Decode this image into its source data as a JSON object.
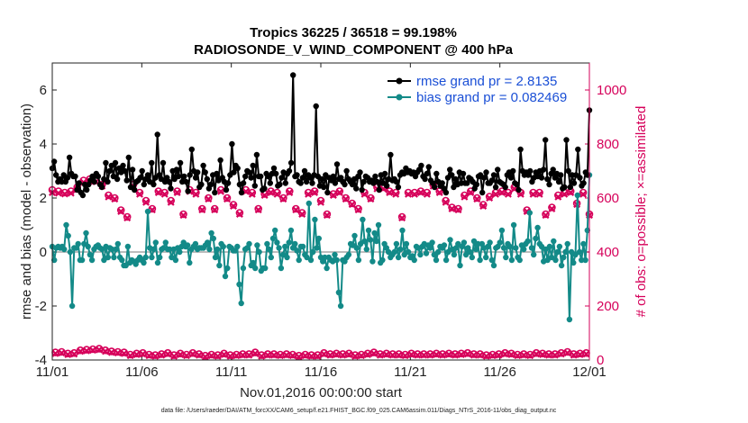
{
  "chart_data": {
    "type": "line",
    "title_line1": "Tropics 36225 / 36518 = 99.198%",
    "title_line2": "RADIOSONDE_V_WIND_COMPONENT @ 400 hPa",
    "ylabel_left": "rmse and bias (model - observation)",
    "ylabel_right": "# of obs: o=possible; ×=assimilated",
    "xlabel": "Nov.01,2016 00:00:00 start",
    "footnote": "data file: /Users/raeder/DAI/ATM_forcXX/CAM6_setup/f.e21.FHIST_BGC.f09_025.CAM6assim.011/Diags_NTrS_2016-11/obs_diag_output.nc",
    "ylim_left": [
      -4,
      7
    ],
    "ylim_right": [
      0,
      1100
    ],
    "xlim": [
      0,
      30
    ],
    "yticks_left": [
      "-4",
      "-2",
      "0",
      "2",
      "4",
      "6"
    ],
    "yticks_right": [
      "0",
      "200",
      "400",
      "600",
      "800",
      "1000"
    ],
    "xticks": [
      "11/01",
      "11/06",
      "11/11",
      "11/16",
      "11/21",
      "11/26",
      "12/01"
    ],
    "legend": [
      {
        "name": "rmse grand pr = 2.8135",
        "color": "#000000"
      },
      {
        "name": "bias grand pr = 0.082469",
        "color": "#138a88"
      }
    ],
    "colors": {
      "rmse": "#000000",
      "bias": "#138a88",
      "obs": "#d6005a",
      "zero_line": "#bdbdbd"
    },
    "series": [
      {
        "name": "rmse",
        "axis": "left",
        "values": [
          3.1,
          3.35,
          2.85,
          2.6,
          2.7,
          2.6,
          2.85,
          2.6,
          2.75,
          3.5,
          2.9,
          2.8,
          2.8,
          2.3,
          2.55,
          2.2,
          2.1,
          2.5,
          2.3,
          2.5,
          2.65,
          2.8,
          2.6,
          2.9,
          2.8,
          2.5,
          2.4,
          2.7,
          3.3,
          2.6,
          3.0,
          3.2,
          2.8,
          3.3,
          2.7,
          3.1,
          2.95,
          3.2,
          3.0,
          2.65,
          3.5,
          2.4,
          3.05,
          2.3,
          2.6,
          2.65,
          2.75,
          3.0,
          2.5,
          2.7,
          2.85,
          2.6,
          3.3,
          2.5,
          2.75,
          4.35,
          2.85,
          2.7,
          3.3,
          2.6,
          2.75,
          2.6,
          2.35,
          3.0,
          2.7,
          3.05,
          2.8,
          3.3,
          2.6,
          2.8,
          2.6,
          2.25,
          2.85,
          3.8,
          3.0,
          2.75,
          2.95,
          2.4,
          2.5,
          3.2,
          2.95,
          2.7,
          2.35,
          2.5,
          2.85,
          2.2,
          2.9,
          2.65,
          3.4,
          2.75,
          2.6,
          2.3,
          2.55,
          2.85,
          4.0,
          2.95,
          3.2,
          3.1,
          2.5,
          2.2,
          2.55,
          2.8,
          3.0,
          2.95,
          2.75,
          3.2,
          2.45,
          3.6,
          2.8,
          2.8,
          2.3,
          2.35,
          2.9,
          2.8,
          2.55,
          2.9,
          3.1,
          2.9,
          2.45,
          2.5,
          2.75,
          2.95,
          2.55,
          2.9,
          3.0,
          3.3,
          6.55,
          2.8,
          2.85,
          2.6,
          2.55,
          2.75,
          3.0,
          2.6,
          2.85,
          2.75,
          2.55,
          2.85,
          5.4,
          2.8,
          2.45,
          2.7,
          2.4,
          2.85,
          2.2,
          2.75,
          2.65,
          2.8,
          2.55,
          3.25,
          2.7,
          2.75,
          2.6,
          2.5,
          3.0,
          2.7,
          2.6,
          2.5,
          2.7,
          2.35,
          2.8,
          2.95,
          2.3,
          2.6,
          2.8,
          2.75,
          2.6,
          2.65,
          2.55,
          2.8,
          2.6,
          2.3,
          2.85,
          2.55,
          2.9,
          2.45,
          2.7,
          3.6,
          2.65,
          2.7,
          2.6,
          2.4,
          2.85,
          2.95,
          2.9,
          3.1,
          2.95,
          3.0,
          2.9,
          2.95,
          2.8,
          2.95,
          3.05,
          3.2,
          2.8,
          2.7,
          2.9,
          3.15,
          2.65,
          2.55,
          2.4,
          2.9,
          2.6,
          2.45,
          2.55,
          2.35,
          2.2,
          2.75,
          3.05,
          2.85,
          2.4,
          2.7,
          2.5,
          2.95,
          2.55,
          2.9,
          2.55,
          2.55,
          2.75,
          2.7,
          2.6,
          2.35,
          2.5,
          2.8,
          2.85,
          2.2,
          2.75,
          2.95,
          2.55,
          2.55,
          2.65,
          2.85,
          2.4,
          3.05,
          2.6,
          2.55,
          2.5,
          2.4,
          2.85,
          2.95,
          2.75,
          3.0,
          2.55,
          2.5,
          2.3,
          3.8,
          3.0,
          2.85,
          2.95,
          2.85,
          3.0,
          2.6,
          2.75,
          2.95,
          2.8,
          3.0,
          2.75,
          3.05,
          4.15,
          2.7,
          2.5,
          2.9,
          3.05,
          2.75,
          2.9,
          2.6,
          2.85,
          2.35,
          2.4,
          4.15,
          3.0,
          2.4,
          2.85,
          2.55,
          2.85,
          3.8,
          2.75,
          2.45,
          2.55,
          2.95,
          2.85,
          5.25
        ]
      },
      {
        "name": "bias",
        "axis": "left",
        "values": [
          0.2,
          -0.3,
          0.15,
          0.2,
          0.15,
          0.2,
          0.1,
          1.0,
          0.6,
          0.0,
          -2.0,
          0.15,
          0.15,
          0.3,
          -0.3,
          -0.3,
          0.3,
          0.7,
          0.2,
          -0.1,
          -0.3,
          0.1,
          0.2,
          0.25,
          0.15,
          0.1,
          -0.3,
          0.2,
          -0.2,
          0.15,
          0.1,
          -0.2,
          0.1,
          0.3,
          -0.2,
          -0.3,
          -0.5,
          -0.5,
          0.2,
          -0.4,
          -0.3,
          -0.35,
          -0.45,
          -0.3,
          -0.2,
          -0.3,
          -0.4,
          -0.2,
          1.5,
          0.15,
          -0.2,
          0.1,
          0.35,
          -0.4,
          -0.2,
          0.1,
          0.15,
          0.35,
          0.1,
          0.1,
          -0.2,
          0.1,
          -0.3,
          0.15,
          0.0,
          0.2,
          0.35,
          0.2,
          0.25,
          -0.4,
          0.1,
          0.2,
          0.3,
          0.1,
          0.15,
          0.15,
          0.15,
          0.25,
          0.35,
          0.1,
          0.7,
          0.5,
          -0.2,
          0.1,
          -0.5,
          0.3,
          0.2,
          -0.9,
          -0.6,
          0.2,
          0.15,
          0.05,
          0.05,
          0.2,
          -1.2,
          -1.9,
          -0.6,
          0.1,
          0.15,
          0.3,
          -0.5,
          -0.4,
          -0.6,
          0.25,
          0.0,
          -0.7,
          -0.6,
          -0.6,
          0.3,
          0.1,
          -0.2,
          0.5,
          0.8,
          0.35,
          0.15,
          -0.6,
          -0.1,
          0.2,
          -0.2,
          0.35,
          0.8,
          0.15,
          0.3,
          0.05,
          -0.3,
          0.2,
          0.2,
          -0.1,
          -0.2,
          1.8,
          -0.3,
          0.0,
          1.2,
          0.15,
          0.5,
          -0.2,
          -0.35,
          -0.2,
          -0.6,
          -0.2,
          -0.3,
          -0.35,
          -0.1,
          -0.3,
          -1.5,
          -2.0,
          -0.3,
          -0.35,
          -0.2,
          -0.1,
          0.3,
          0.25,
          0.6,
          0.15,
          -0.3,
          0.3,
          1.2,
          0.4,
          0.1,
          0.8,
          0.45,
          -0.35,
          0.7,
          0.4,
          1.0,
          -0.4,
          -0.3,
          0.3,
          0.15,
          0.0,
          -0.2,
          -0.1,
          0.0,
          0.3,
          -0.2,
          0.1,
          0.8,
          -0.1,
          0.3,
          0.0,
          -0.2,
          -0.15,
          -0.3,
          0.2,
          0.15,
          -0.1,
          0.2,
          0.3,
          -0.05,
          0.25,
          0.15,
          0.35,
          -0.1,
          -0.3,
          0.0,
          0.2,
          0.15,
          0.25,
          -0.3,
          0.0,
          0.45,
          0.1,
          -0.1,
          0.15,
          0.3,
          -0.5,
          0.2,
          0.35,
          -0.1,
          0.15,
          0.0,
          -0.2,
          0.4,
          0.1,
          0.3,
          -0.3,
          0.3,
          0.15,
          -0.2,
          0.2,
          0.35,
          -0.3,
          -0.5,
          0.15,
          0.2,
          0.35,
          0.8,
          0.15,
          -0.2,
          0.3,
          0.2,
          -0.3,
          1.0,
          0.15,
          -0.2,
          -0.3,
          0.25,
          0.1,
          0.3,
          0.4,
          1.45,
          0.15,
          -0.1,
          0.5,
          0.9,
          0.3,
          0.2,
          -0.35,
          0.1,
          -0.3,
          0.2,
          -0.2,
          0.4,
          -0.3,
          0.0,
          0.2,
          -0.5,
          -0.2,
          0.0,
          0.3,
          -2.5,
          0.0,
          -0.4,
          -0.1,
          2.1,
          0.0,
          -0.3,
          0.3,
          -0.3,
          0.8,
          2.85
        ]
      },
      {
        "name": "obs_possible",
        "axis": "right",
        "values": [
          630,
          28,
          625,
          30,
          620,
          24,
          625,
          26,
          640,
          36,
          665,
          38,
          670,
          40,
          665,
          42,
          650,
          36,
          610,
          32,
          600,
          30,
          555,
          28,
          530,
          20,
          650,
          24,
          620,
          26,
          590,
          20,
          560,
          18,
          625,
          22,
          620,
          26,
          590,
          18,
          625,
          24,
          540,
          20,
          630,
          26,
          620,
          22,
          560,
          16,
          600,
          20,
          560,
          18,
          630,
          24,
          600,
          18,
          575,
          20,
          545,
          22,
          630,
          22,
          620,
          28,
          560,
          18,
          615,
          22,
          625,
          22,
          620,
          20,
          600,
          22,
          625,
          20,
          560,
          16,
          545,
          20,
          620,
          18,
          625,
          18,
          590,
          26,
          540,
          22,
          615,
          24,
          625,
          22,
          600,
          24,
          580,
          18,
          560,
          20,
          620,
          24,
          600,
          28,
          640,
          22,
          640,
          24,
          625,
          22,
          620,
          22,
          530,
          20,
          620,
          24,
          620,
          22,
          625,
          22,
          620,
          22,
          650,
          24,
          625,
          22,
          590,
          24,
          565,
          22,
          560,
          24,
          610,
          26,
          625,
          22,
          600,
          22,
          575,
          18,
          605,
          20,
          620,
          22,
          625,
          26,
          620,
          24,
          640,
          20,
          620,
          22,
          555,
          20,
          620,
          26,
          620,
          24,
          540,
          22,
          565,
          22,
          610,
          26,
          620,
          30,
          625,
          22,
          580,
          24,
          620,
          26,
          540
        ]
      },
      {
        "name": "obs_assimilated",
        "axis": "right",
        "values": [
          620,
          24,
          618,
          26,
          615,
          20,
          618,
          22,
          632,
          32,
          658,
          34,
          662,
          36,
          660,
          38,
          644,
          32,
          604,
          28,
          596,
          26,
          550,
          24,
          526,
          16,
          644,
          20,
          614,
          22,
          584,
          16,
          556,
          14,
          620,
          18,
          614,
          22,
          584,
          14,
          620,
          20,
          536,
          16,
          624,
          22,
          614,
          18,
          556,
          12,
          596,
          16,
          556,
          14,
          624,
          20,
          596,
          14,
          570,
          16,
          540,
          18,
          624,
          18,
          614,
          24,
          556,
          14,
          610,
          18,
          620,
          18,
          614,
          16,
          596,
          18,
          620,
          16,
          556,
          12,
          540,
          16,
          614,
          14,
          620,
          14,
          584,
          22,
          536,
          18,
          610,
          20,
          620,
          18,
          596,
          20,
          576,
          14,
          556,
          16,
          614,
          20,
          596,
          24,
          634,
          18,
          634,
          20,
          620,
          18,
          614,
          18,
          526,
          16,
          614,
          20,
          614,
          18,
          620,
          18,
          614,
          18,
          644,
          20,
          620,
          18,
          584,
          20,
          560,
          18,
          556,
          20,
          604,
          22,
          620,
          18,
          596,
          18,
          570,
          14,
          600,
          16,
          614,
          18,
          620,
          22,
          614,
          20,
          634,
          16,
          614,
          18,
          550,
          16,
          614,
          22,
          614,
          20,
          536,
          18,
          560,
          18,
          604,
          22,
          614,
          26,
          620,
          18,
          576,
          20,
          614,
          22,
          536
        ]
      }
    ]
  }
}
